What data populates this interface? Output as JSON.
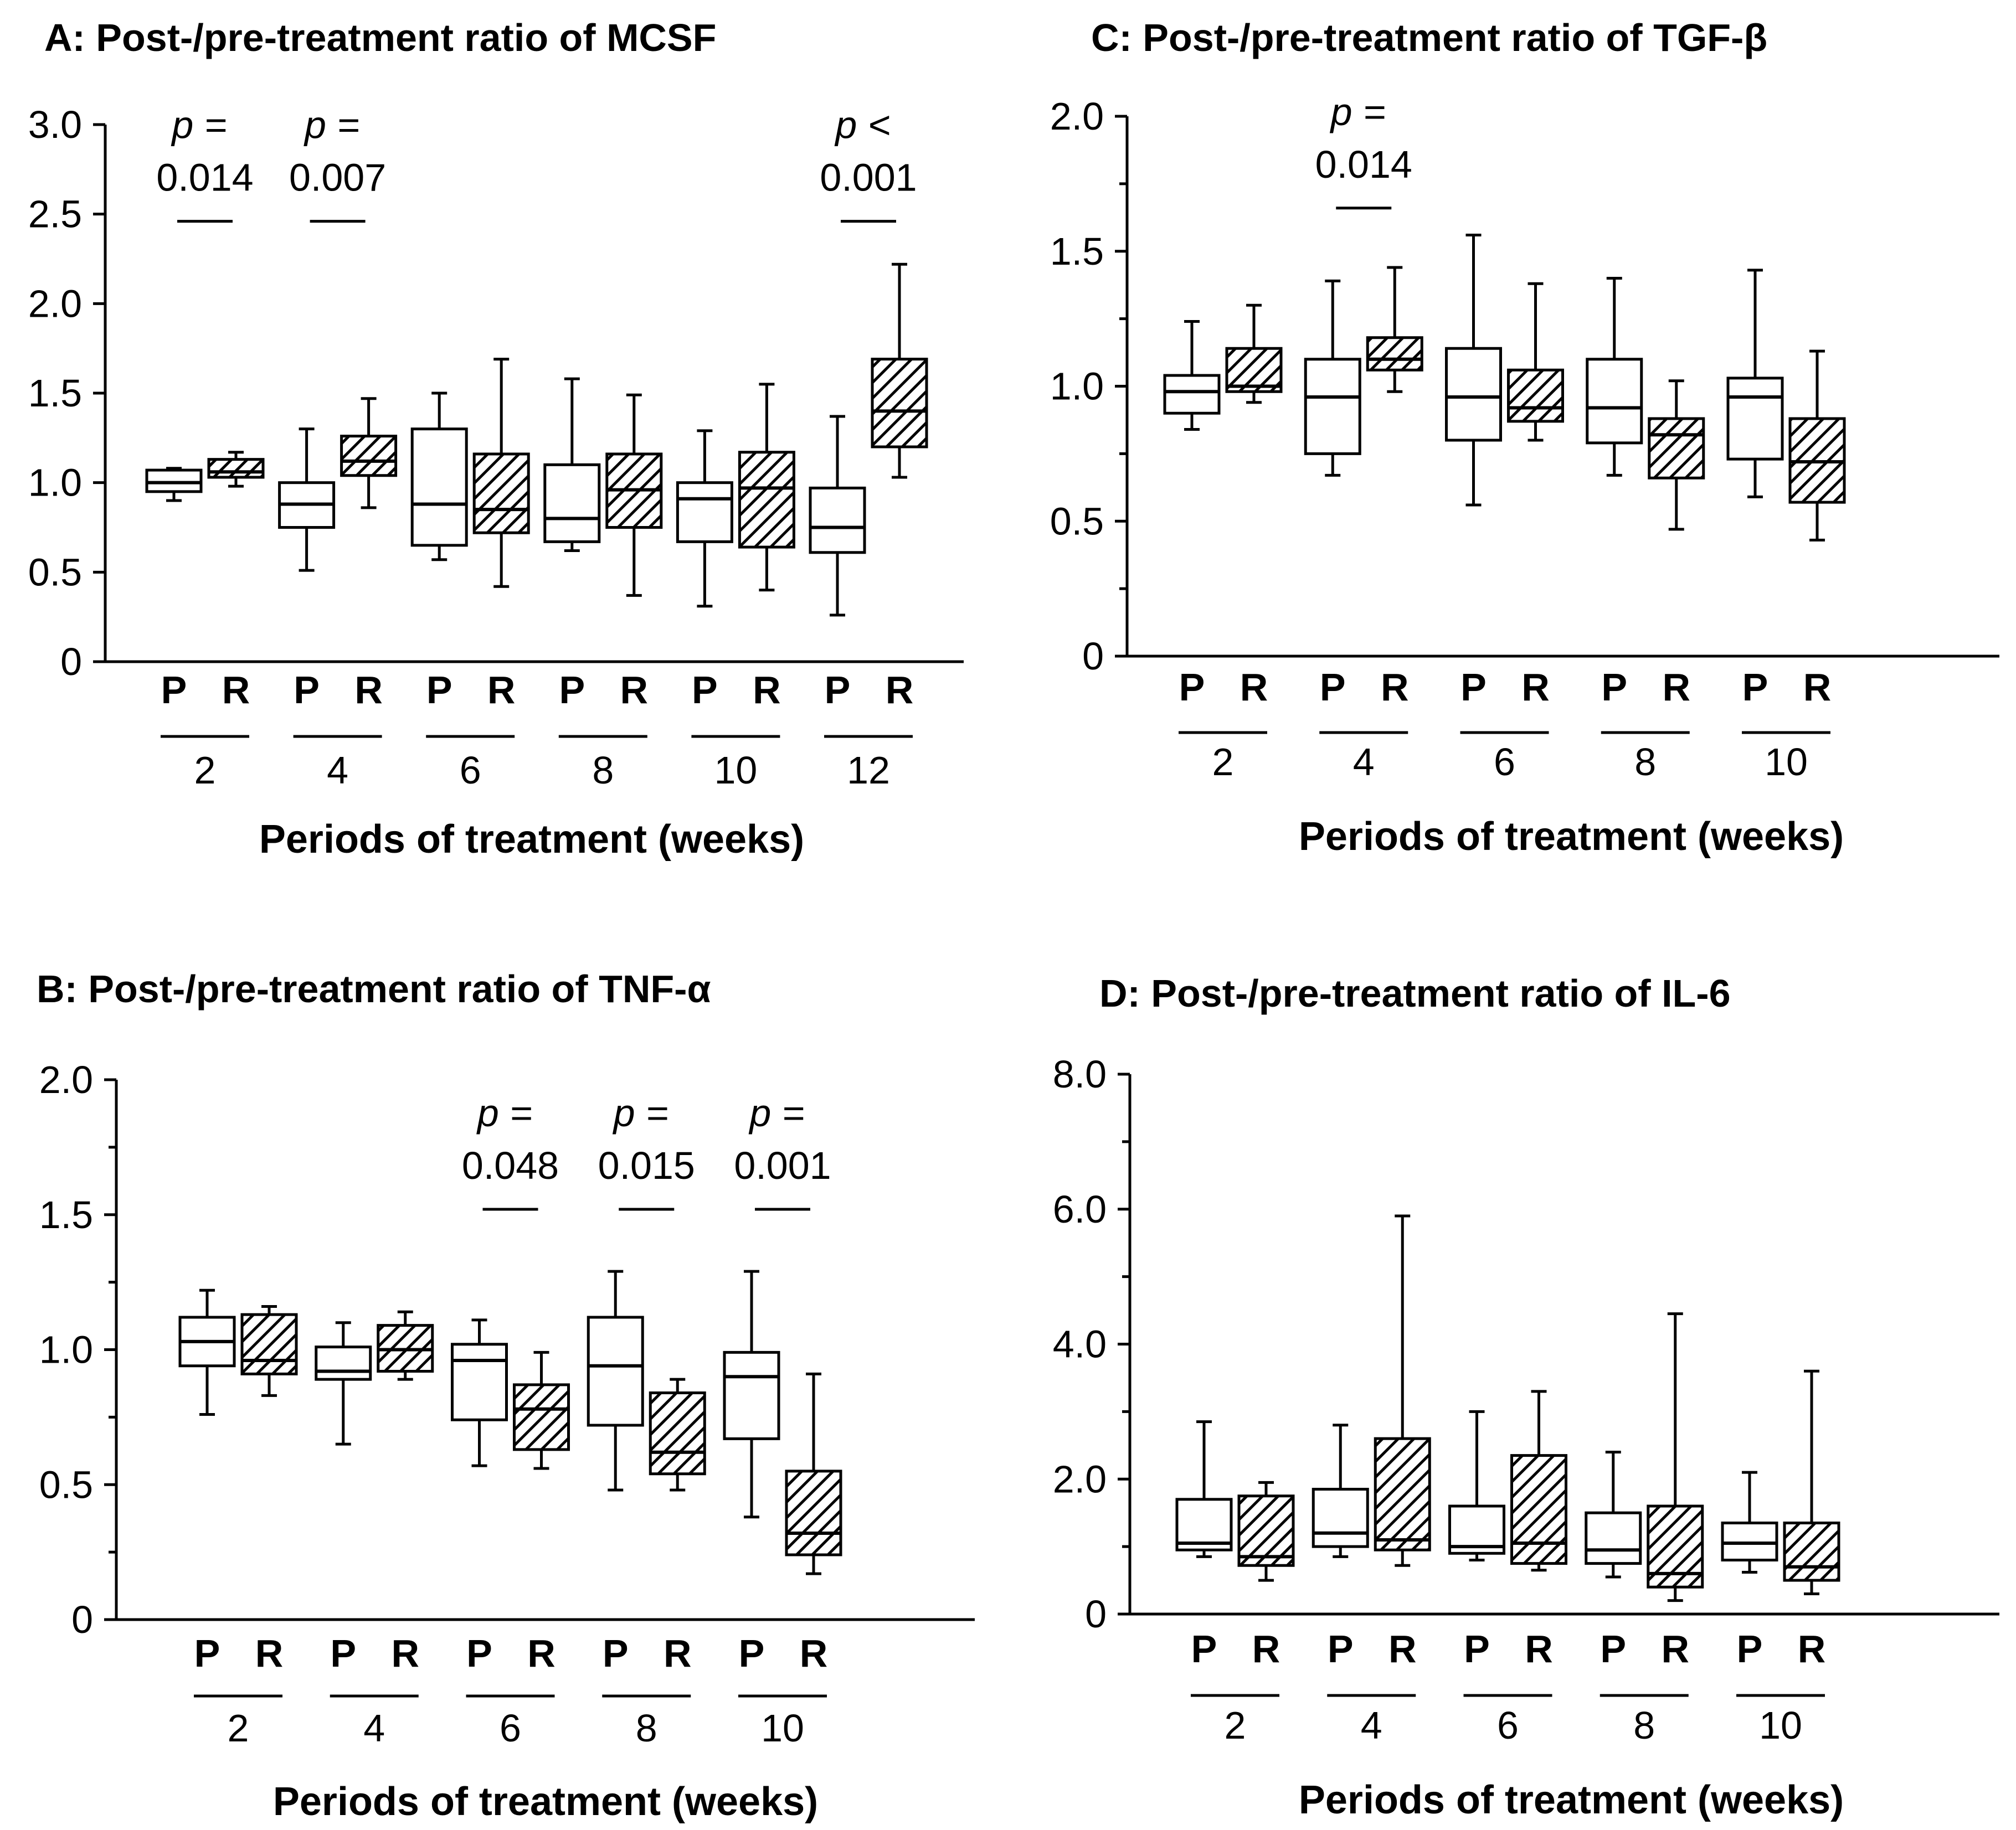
{
  "colors": {
    "ink": "#000000",
    "box_fill_P": "#ffffff",
    "hatch_R": "#000000"
  },
  "chart_data": [
    {
      "id": "A",
      "type": "box",
      "title": "A: Post-/pre-treatment ratio of MCSF",
      "xlabel": "Periods of treatment (weeks)",
      "ylabel": "",
      "ylim": [
        0,
        3.0
      ],
      "yticks": [
        0,
        0.5,
        1.0,
        1.5,
        2.0,
        2.5,
        3.0
      ],
      "ytick_labels": [
        "0",
        "0.5",
        "1.0",
        "1.5",
        "2.0",
        "2.5",
        "3.0"
      ],
      "groups": [
        "P",
        "R"
      ],
      "categories": [
        "2",
        "4",
        "6",
        "8",
        "10",
        "12"
      ],
      "boxes": [
        {
          "week": "2",
          "group": "P",
          "min": 0.9,
          "q1": 0.95,
          "median": 1.0,
          "q3": 1.07,
          "max": 1.08
        },
        {
          "week": "2",
          "group": "R",
          "min": 0.98,
          "q1": 1.03,
          "median": 1.06,
          "q3": 1.13,
          "max": 1.17
        },
        {
          "week": "4",
          "group": "P",
          "min": 0.51,
          "q1": 0.75,
          "median": 0.88,
          "q3": 1.0,
          "max": 1.3
        },
        {
          "week": "4",
          "group": "R",
          "min": 0.86,
          "q1": 1.04,
          "median": 1.12,
          "q3": 1.26,
          "max": 1.47
        },
        {
          "week": "6",
          "group": "P",
          "min": 0.57,
          "q1": 0.65,
          "median": 0.88,
          "q3": 1.3,
          "max": 1.5
        },
        {
          "week": "6",
          "group": "R",
          "min": 0.42,
          "q1": 0.72,
          "median": 0.85,
          "q3": 1.16,
          "max": 1.69
        },
        {
          "week": "8",
          "group": "P",
          "min": 0.62,
          "q1": 0.67,
          "median": 0.8,
          "q3": 1.1,
          "max": 1.58
        },
        {
          "week": "8",
          "group": "R",
          "min": 0.37,
          "q1": 0.75,
          "median": 0.96,
          "q3": 1.16,
          "max": 1.49
        },
        {
          "week": "10",
          "group": "P",
          "min": 0.31,
          "q1": 0.67,
          "median": 0.91,
          "q3": 1.0,
          "max": 1.29
        },
        {
          "week": "10",
          "group": "R",
          "min": 0.4,
          "q1": 0.64,
          "median": 0.97,
          "q3": 1.17,
          "max": 1.55
        },
        {
          "week": "12",
          "group": "P",
          "min": 0.26,
          "q1": 0.61,
          "median": 0.75,
          "q3": 0.97,
          "max": 1.37
        },
        {
          "week": "12",
          "group": "R",
          "min": 1.03,
          "q1": 1.2,
          "median": 1.4,
          "q3": 1.69,
          "max": 2.22
        }
      ],
      "annotations": [
        {
          "week": "2",
          "prefix": "p =",
          "value": "0.014",
          "bar_y": 2.46
        },
        {
          "week": "4",
          "prefix": "p =",
          "value": "0.007",
          "bar_y": 2.46
        },
        {
          "week": "12",
          "prefix": "p <",
          "value": "0.001",
          "bar_y": 2.46
        }
      ]
    },
    {
      "id": "B",
      "type": "box",
      "title": "B: Post-/pre-treatment ratio of TNF-α",
      "xlabel": "Periods of treatment (weeks)",
      "ylabel": "",
      "ylim": [
        0,
        2.0
      ],
      "yticks": [
        0,
        0.5,
        1.0,
        1.5,
        2.0
      ],
      "ytick_labels": [
        "0",
        "0.5",
        "1.0",
        "1.5",
        "2.0"
      ],
      "groups": [
        "P",
        "R"
      ],
      "categories": [
        "2",
        "4",
        "6",
        "8",
        "10"
      ],
      "boxes": [
        {
          "week": "2",
          "group": "P",
          "min": 0.76,
          "q1": 0.94,
          "median": 1.03,
          "q3": 1.12,
          "max": 1.22
        },
        {
          "week": "2",
          "group": "R",
          "min": 0.83,
          "q1": 0.91,
          "median": 0.96,
          "q3": 1.13,
          "max": 1.16
        },
        {
          "week": "4",
          "group": "P",
          "min": 0.65,
          "q1": 0.89,
          "median": 0.92,
          "q3": 1.01,
          "max": 1.1
        },
        {
          "week": "4",
          "group": "R",
          "min": 0.89,
          "q1": 0.92,
          "median": 1.0,
          "q3": 1.09,
          "max": 1.14
        },
        {
          "week": "6",
          "group": "P",
          "min": 0.57,
          "q1": 0.74,
          "median": 0.96,
          "q3": 1.02,
          "max": 1.11
        },
        {
          "week": "6",
          "group": "R",
          "min": 0.56,
          "q1": 0.63,
          "median": 0.78,
          "q3": 0.87,
          "max": 0.99
        },
        {
          "week": "8",
          "group": "P",
          "min": 0.48,
          "q1": 0.72,
          "median": 0.94,
          "q3": 1.12,
          "max": 1.29
        },
        {
          "week": "8",
          "group": "R",
          "min": 0.48,
          "q1": 0.54,
          "median": 0.62,
          "q3": 0.84,
          "max": 0.89
        },
        {
          "week": "10",
          "group": "P",
          "min": 0.38,
          "q1": 0.67,
          "median": 0.9,
          "q3": 0.99,
          "max": 1.29
        },
        {
          "week": "10",
          "group": "R",
          "min": 0.17,
          "q1": 0.24,
          "median": 0.32,
          "q3": 0.55,
          "max": 0.91
        }
      ],
      "annotations": [
        {
          "week": "6",
          "prefix": "p =",
          "value": "0.048",
          "bar_y": 1.52
        },
        {
          "week": "8",
          "prefix": "p =",
          "value": "0.015",
          "bar_y": 1.52
        },
        {
          "week": "10",
          "prefix": "p =",
          "value": "0.001",
          "bar_y": 1.52
        }
      ]
    },
    {
      "id": "C",
      "type": "box",
      "title": "C: Post-/pre-treatment ratio of TGF-β",
      "xlabel": "Periods of treatment (weeks)",
      "ylabel": "",
      "ylim": [
        0,
        2.0
      ],
      "yticks": [
        0,
        0.5,
        1.0,
        1.5,
        2.0
      ],
      "ytick_labels": [
        "0",
        "0.5",
        "1.0",
        "1.5",
        "2.0"
      ],
      "groups": [
        "P",
        "R"
      ],
      "categories": [
        "2",
        "4",
        "6",
        "8",
        "10"
      ],
      "boxes": [
        {
          "week": "2",
          "group": "P",
          "min": 0.84,
          "q1": 0.9,
          "median": 0.98,
          "q3": 1.04,
          "max": 1.24
        },
        {
          "week": "2",
          "group": "R",
          "min": 0.94,
          "q1": 0.98,
          "median": 1.0,
          "q3": 1.14,
          "max": 1.3
        },
        {
          "week": "4",
          "group": "P",
          "min": 0.67,
          "q1": 0.75,
          "median": 0.96,
          "q3": 1.1,
          "max": 1.39
        },
        {
          "week": "4",
          "group": "R",
          "min": 0.98,
          "q1": 1.06,
          "median": 1.1,
          "q3": 1.18,
          "max": 1.44
        },
        {
          "week": "6",
          "group": "P",
          "min": 0.56,
          "q1": 0.8,
          "median": 0.96,
          "q3": 1.14,
          "max": 1.56
        },
        {
          "week": "6",
          "group": "R",
          "min": 0.8,
          "q1": 0.87,
          "median": 0.92,
          "q3": 1.06,
          "max": 1.38
        },
        {
          "week": "8",
          "group": "P",
          "min": 0.67,
          "q1": 0.79,
          "median": 0.92,
          "q3": 1.1,
          "max": 1.4
        },
        {
          "week": "8",
          "group": "R",
          "min": 0.47,
          "q1": 0.66,
          "median": 0.82,
          "q3": 0.88,
          "max": 1.02
        },
        {
          "week": "10",
          "group": "P",
          "min": 0.59,
          "q1": 0.73,
          "median": 0.96,
          "q3": 1.03,
          "max": 1.43
        },
        {
          "week": "10",
          "group": "R",
          "min": 0.43,
          "q1": 0.57,
          "median": 0.72,
          "q3": 0.88,
          "max": 1.13
        }
      ],
      "annotations": [
        {
          "week": "4",
          "prefix": "p =",
          "value": "0.014",
          "bar_y": 1.66
        }
      ]
    },
    {
      "id": "D",
      "type": "box",
      "title": "D: Post-/pre-treatment ratio of IL-6",
      "xlabel": "Periods of treatment (weeks)",
      "ylabel": "",
      "ylim": [
        0,
        8.0
      ],
      "yticks": [
        0,
        2.0,
        4.0,
        6.0,
        8.0
      ],
      "ytick_labels": [
        "0",
        "2.0",
        "4.0",
        "6.0",
        "8.0"
      ],
      "minor_yticks": [
        1.0,
        3.0,
        5.0,
        7.0
      ],
      "groups": [
        "P",
        "R"
      ],
      "categories": [
        "2",
        "4",
        "6",
        "8",
        "10"
      ],
      "boxes": [
        {
          "week": "2",
          "group": "P",
          "min": 0.85,
          "q1": 0.95,
          "median": 1.05,
          "q3": 1.7,
          "max": 2.85
        },
        {
          "week": "2",
          "group": "R",
          "min": 0.5,
          "q1": 0.72,
          "median": 0.85,
          "q3": 1.75,
          "max": 1.95
        },
        {
          "week": "4",
          "group": "P",
          "min": 0.85,
          "q1": 1.0,
          "median": 1.2,
          "q3": 1.85,
          "max": 2.8
        },
        {
          "week": "4",
          "group": "R",
          "min": 0.72,
          "q1": 0.95,
          "median": 1.1,
          "q3": 2.6,
          "max": 5.9
        },
        {
          "week": "6",
          "group": "P",
          "min": 0.8,
          "q1": 0.9,
          "median": 1.0,
          "q3": 1.6,
          "max": 3.0
        },
        {
          "week": "6",
          "group": "R",
          "min": 0.65,
          "q1": 0.75,
          "median": 1.05,
          "q3": 2.35,
          "max": 3.3
        },
        {
          "week": "8",
          "group": "P",
          "min": 0.55,
          "q1": 0.75,
          "median": 0.95,
          "q3": 1.5,
          "max": 2.4
        },
        {
          "week": "8",
          "group": "R",
          "min": 0.2,
          "q1": 0.4,
          "median": 0.6,
          "q3": 1.6,
          "max": 4.45
        },
        {
          "week": "10",
          "group": "P",
          "min": 0.62,
          "q1": 0.8,
          "median": 1.05,
          "q3": 1.35,
          "max": 2.1
        },
        {
          "week": "10",
          "group": "R",
          "min": 0.3,
          "q1": 0.5,
          "median": 0.7,
          "q3": 1.35,
          "max": 3.6
        }
      ],
      "annotations": []
    }
  ]
}
